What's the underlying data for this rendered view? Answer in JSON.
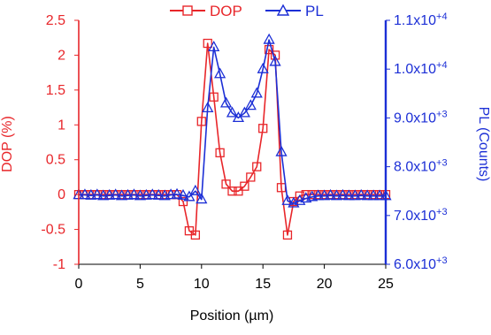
{
  "chart_data": {
    "type": "line",
    "title": "",
    "xlabel": "Position (µm)",
    "ylabel_left": "DOP (%)",
    "ylabel_right": "PL (Counts)",
    "xlim": [
      0,
      25
    ],
    "ylim_left": [
      -1,
      2.5
    ],
    "ylim_right": [
      6000,
      11000
    ],
    "x_ticks": [
      "0",
      "5",
      "10",
      "15",
      "20",
      "25"
    ],
    "y_left_ticks": [
      "-1",
      "-0.5",
      "0",
      "0.5",
      "1",
      "1.5",
      "2",
      "2.5"
    ],
    "y_right_ticks": [
      {
        "mant": "6.0x10",
        "exp": "+3"
      },
      {
        "mant": "7.0x10",
        "exp": "+3"
      },
      {
        "mant": "8.0x10",
        "exp": "+3"
      },
      {
        "mant": "9.0x10",
        "exp": "+3"
      },
      {
        "mant": "1.0x10",
        "exp": "+4"
      },
      {
        "mant": "1.1x10",
        "exp": "+4"
      }
    ],
    "grid": false,
    "legend": "top",
    "colors": {
      "dop": "#e8262a",
      "pl": "#1c2fd6",
      "axis": "#000000"
    },
    "series": [
      {
        "name": "DOP",
        "axis": "left",
        "marker": "square",
        "x": [
          0,
          0.5,
          1,
          1.5,
          2,
          2.5,
          3,
          3.5,
          4,
          4.5,
          5,
          5.5,
          6,
          6.5,
          7,
          7.5,
          8,
          8.5,
          9,
          9.5,
          10,
          10.5,
          11,
          11.5,
          12,
          12.5,
          13,
          13.5,
          14,
          14.5,
          15,
          15.5,
          16,
          16.5,
          17,
          17.5,
          18,
          18.5,
          19,
          19.5,
          20,
          20.5,
          21,
          21.5,
          22,
          22.5,
          23,
          23.5,
          24,
          24.5,
          25
        ],
        "y": [
          0,
          0,
          0,
          0,
          0,
          0,
          0,
          0,
          0,
          0,
          0,
          0,
          0,
          0,
          0,
          0,
          0,
          -0.1,
          -0.52,
          -0.58,
          1.05,
          2.17,
          1.4,
          0.6,
          0.15,
          0.05,
          0.05,
          0.12,
          0.25,
          0.4,
          0.95,
          2.08,
          2.0,
          0.1,
          -0.58,
          -0.1,
          -0.02,
          0,
          0,
          0,
          0,
          0,
          0,
          0,
          0,
          0,
          0,
          0,
          0,
          0,
          0
        ]
      },
      {
        "name": "PL",
        "axis": "right",
        "marker": "triangle",
        "x": [
          0,
          0.5,
          1,
          1.5,
          2,
          2.5,
          3,
          3.5,
          4,
          4.5,
          5,
          5.5,
          6,
          6.5,
          7,
          7.5,
          8,
          8.5,
          9,
          9.5,
          10,
          10.5,
          11,
          11.5,
          12,
          12.5,
          13,
          13.5,
          14,
          14.5,
          15,
          15.5,
          16,
          16.5,
          17,
          17.5,
          18,
          18.5,
          19,
          19.5,
          20,
          20.5,
          21,
          21.5,
          22,
          22.5,
          23,
          23.5,
          24,
          24.5,
          25
        ],
        "y": [
          7420,
          7420,
          7410,
          7420,
          7400,
          7410,
          7420,
          7400,
          7410,
          7420,
          7400,
          7410,
          7420,
          7410,
          7400,
          7420,
          7430,
          7410,
          7380,
          7500,
          7330,
          9200,
          10450,
          9900,
          9300,
          9100,
          9000,
          9100,
          9250,
          9500,
          10000,
          10600,
          10150,
          8300,
          7300,
          7250,
          7300,
          7350,
          7380,
          7400,
          7400,
          7410,
          7400,
          7410,
          7400,
          7400,
          7410,
          7400,
          7400,
          7400,
          7400
        ]
      }
    ]
  }
}
